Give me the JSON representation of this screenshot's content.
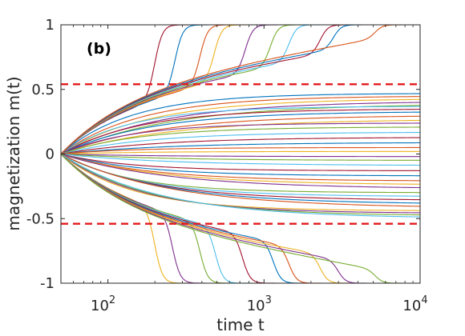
{
  "chart_data": {
    "type": "line",
    "panel_label": "(b)",
    "xlabel": "time t",
    "ylabel": "magnetization m(t)",
    "x_scale": "log",
    "xlim": [
      50,
      10000
    ],
    "ylim": [
      -1,
      1
    ],
    "x_ticks": [
      {
        "value": 100,
        "base": "10",
        "exp": "2"
      },
      {
        "value": 1000,
        "base": "10",
        "exp": "3"
      },
      {
        "value": 10000,
        "base": "10",
        "exp": "4"
      }
    ],
    "y_ticks": [
      {
        "value": 1,
        "label": "1"
      },
      {
        "value": 0.5,
        "label": "0.5"
      },
      {
        "value": 0,
        "label": "0"
      },
      {
        "value": -0.5,
        "label": "-0.5"
      },
      {
        "value": -1,
        "label": "-1"
      }
    ],
    "thresholds": [
      0.54,
      -0.54
    ],
    "threshold_color": "#e31a1c",
    "axis_color": "#262626",
    "series_start": {
      "t": 50,
      "m": 0
    },
    "plateau_levels": [
      0.47,
      0.45,
      0.43,
      0.41,
      0.39,
      0.37,
      0.35,
      0.33,
      0.3,
      0.27,
      0.24,
      0.21,
      0.17,
      0.13,
      0.09,
      0.05,
      0.02,
      -0.02,
      -0.05,
      -0.09,
      -0.13,
      -0.17,
      -0.21,
      -0.24,
      -0.27,
      -0.3,
      -0.33,
      -0.36,
      -0.39,
      -0.42,
      -0.44,
      -0.46,
      -0.48,
      -0.5
    ],
    "switching_up_times": [
      200,
      270,
      390,
      480,
      760,
      1100,
      1450,
      2300,
      2800,
      5200
    ],
    "switching_down_times": [
      200,
      260,
      390,
      490,
      730,
      1150,
      1450,
      2300,
      3000,
      5200
    ],
    "series_colors": [
      "#0072bd",
      "#d95319",
      "#edb120",
      "#7e2f8e",
      "#77ac30",
      "#4dbeee",
      "#a2142f"
    ]
  }
}
